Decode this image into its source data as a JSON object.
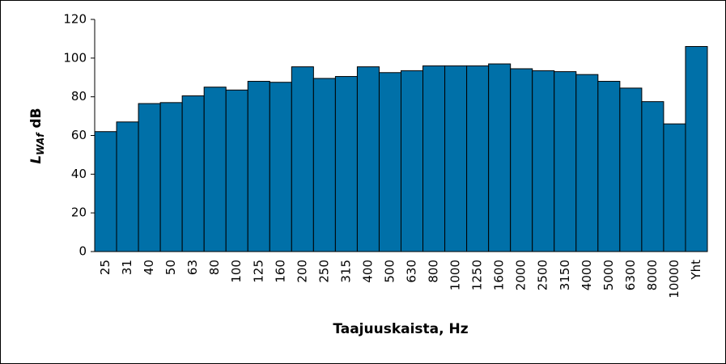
{
  "chart_data": {
    "type": "bar",
    "xlabel": "Taajuuskaista, Hz",
    "ylabel": {
      "main": "L",
      "sub": "WAf",
      "unit": "dB"
    },
    "categories": [
      "25",
      "31",
      "40",
      "50",
      "63",
      "80",
      "100",
      "125",
      "160",
      "200",
      "250",
      "315",
      "400",
      "500",
      "630",
      "800",
      "1000",
      "1250",
      "1600",
      "2000",
      "2500",
      "3150",
      "4000",
      "5000",
      "6300",
      "8000",
      "10000",
      "Yht"
    ],
    "values": [
      62,
      67,
      76.5,
      77,
      80.5,
      85,
      83.5,
      88,
      87.5,
      95.5,
      89.5,
      90.5,
      95.5,
      92.5,
      93.5,
      96,
      96,
      96,
      97,
      94.5,
      93.5,
      93,
      91.5,
      88,
      84.5,
      77.5,
      66,
      106
    ],
    "color": "#0070a8",
    "ylim": [
      0,
      120
    ],
    "yticks": [
      0,
      20,
      40,
      60,
      80,
      100,
      120
    ],
    "grid": false
  }
}
